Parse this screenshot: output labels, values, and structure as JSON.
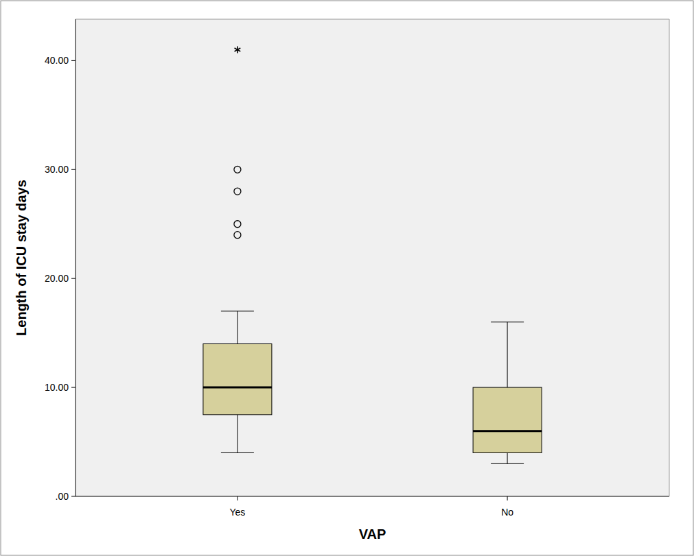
{
  "chart_data": {
    "type": "box",
    "x_label": "VAP",
    "y_label": "Length of ICU stay days",
    "categories": [
      "Yes",
      "No"
    ],
    "min": [
      4,
      3
    ],
    "q1": [
      7.5,
      4
    ],
    "median": [
      10,
      6
    ],
    "q3": [
      14,
      10
    ],
    "max": [
      17,
      16
    ],
    "outliers": [
      [
        24,
        25,
        28,
        30
      ],
      []
    ],
    "extremes": [
      [
        41
      ],
      []
    ],
    "color": "#d6d09c",
    "ylim": [
      0,
      43.8
    ],
    "yticks": [
      {
        "value": 0,
        "label": ".00"
      },
      {
        "value": 10,
        "label": "10.00"
      },
      {
        "value": 20,
        "label": "20.00"
      },
      {
        "value": 30,
        "label": "30.00"
      },
      {
        "value": 40,
        "label": "40.00"
      }
    ],
    "grid": false
  }
}
